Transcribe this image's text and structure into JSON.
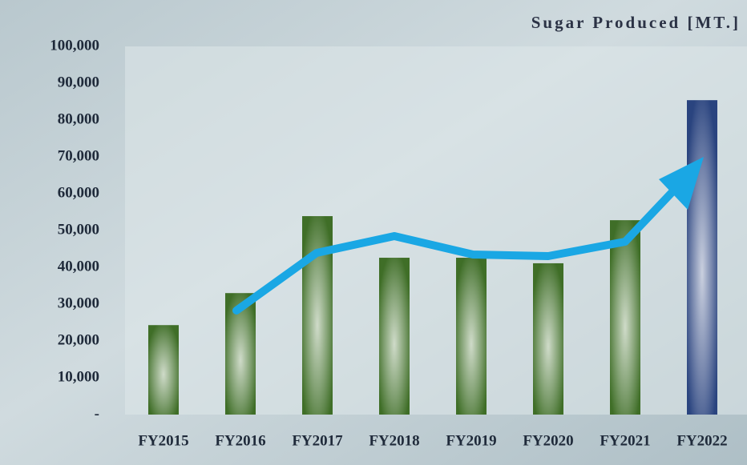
{
  "chart_data": {
    "type": "bar",
    "title": "Sugar Produced [MT.]",
    "categories": [
      "FY2015",
      "FY2016",
      "FY2017",
      "FY2018",
      "FY2019",
      "FY2020",
      "FY2021",
      "FY2022"
    ],
    "values": [
      24300,
      33000,
      53900,
      42600,
      42600,
      41100,
      52800,
      85400
    ],
    "colors": [
      "#3f6e27",
      "#3f6e27",
      "#3f6e27",
      "#3f6e27",
      "#3f6e27",
      "#3f6e27",
      "#3f6e27",
      "#2a447f"
    ],
    "ylim": [
      0,
      100000
    ],
    "yticks": [
      {
        "value": 0,
        "label": "-"
      },
      {
        "value": 10000,
        "label": "10,000"
      },
      {
        "value": 20000,
        "label": "20,000"
      },
      {
        "value": 30000,
        "label": "30,000"
      },
      {
        "value": 40000,
        "label": "40,000"
      },
      {
        "value": 50000,
        "label": "50,000"
      },
      {
        "value": 60000,
        "label": "60,000"
      },
      {
        "value": 70000,
        "label": "70,000"
      },
      {
        "value": 80000,
        "label": "80,000"
      },
      {
        "value": 90000,
        "label": "90,000"
      },
      {
        "value": 100000,
        "label": "100,000"
      }
    ]
  }
}
